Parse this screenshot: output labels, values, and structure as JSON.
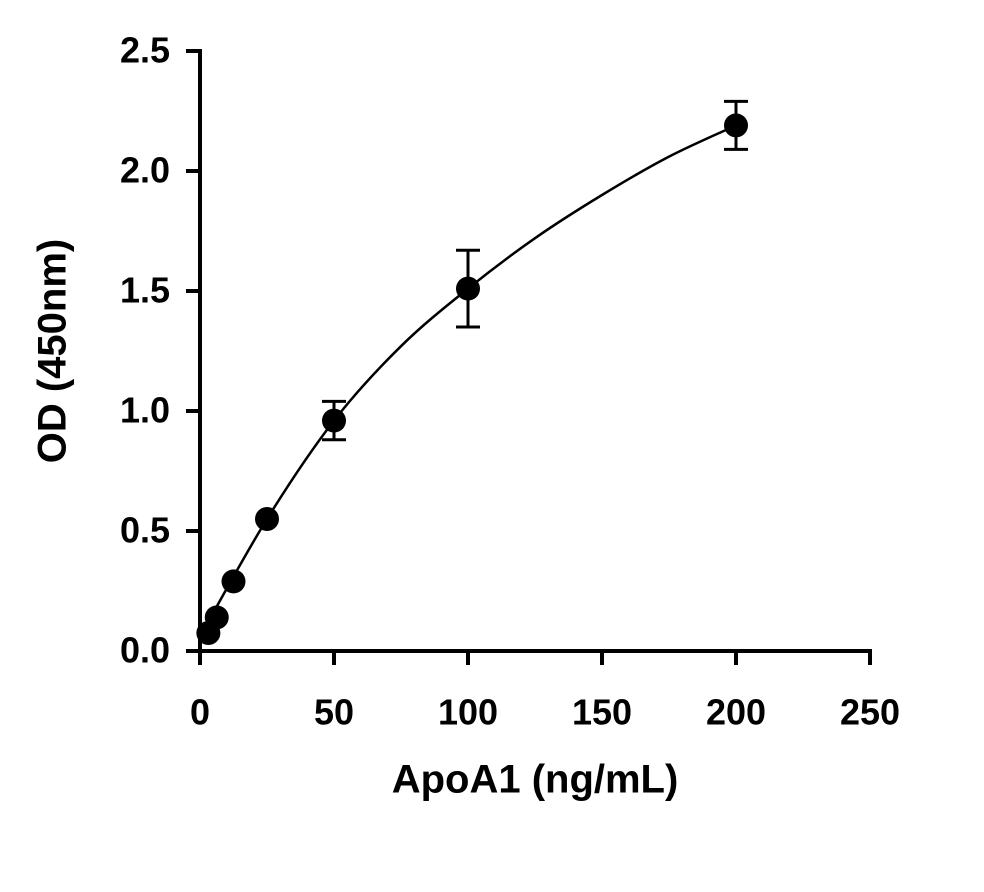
{
  "chart_data": {
    "type": "scatter",
    "x_label": "ApoA1 (ng/mL)",
    "y_label": "OD (450nm)",
    "x": [
      3.125,
      6.25,
      12.5,
      25,
      50,
      100,
      200
    ],
    "series": [
      {
        "color": "#000000",
        "values": [
          0.075,
          0.14,
          0.29,
          0.55,
          0.96,
          1.51,
          2.19
        ],
        "errors": [
          null,
          null,
          null,
          null,
          0.08,
          0.16,
          0.1
        ]
      }
    ],
    "fit": {
      "color": "#000000",
      "x": [
        0,
        25,
        50,
        75,
        100,
        125,
        150,
        175,
        200
      ],
      "y": [
        0.06,
        0.55,
        0.96,
        1.27,
        1.51,
        1.72,
        1.9,
        2.06,
        2.19
      ]
    },
    "xlim": [
      0,
      250
    ],
    "ylim": [
      0,
      2.5
    ],
    "xticks": [
      0,
      50,
      100,
      150,
      200,
      250
    ],
    "yticks": [
      {
        "value": 0,
        "label": "0.0"
      },
      0.5,
      {
        "value": 1,
        "label": "1.0"
      },
      1.5,
      {
        "value": 2,
        "label": "2.0"
      },
      2.5
    ]
  }
}
